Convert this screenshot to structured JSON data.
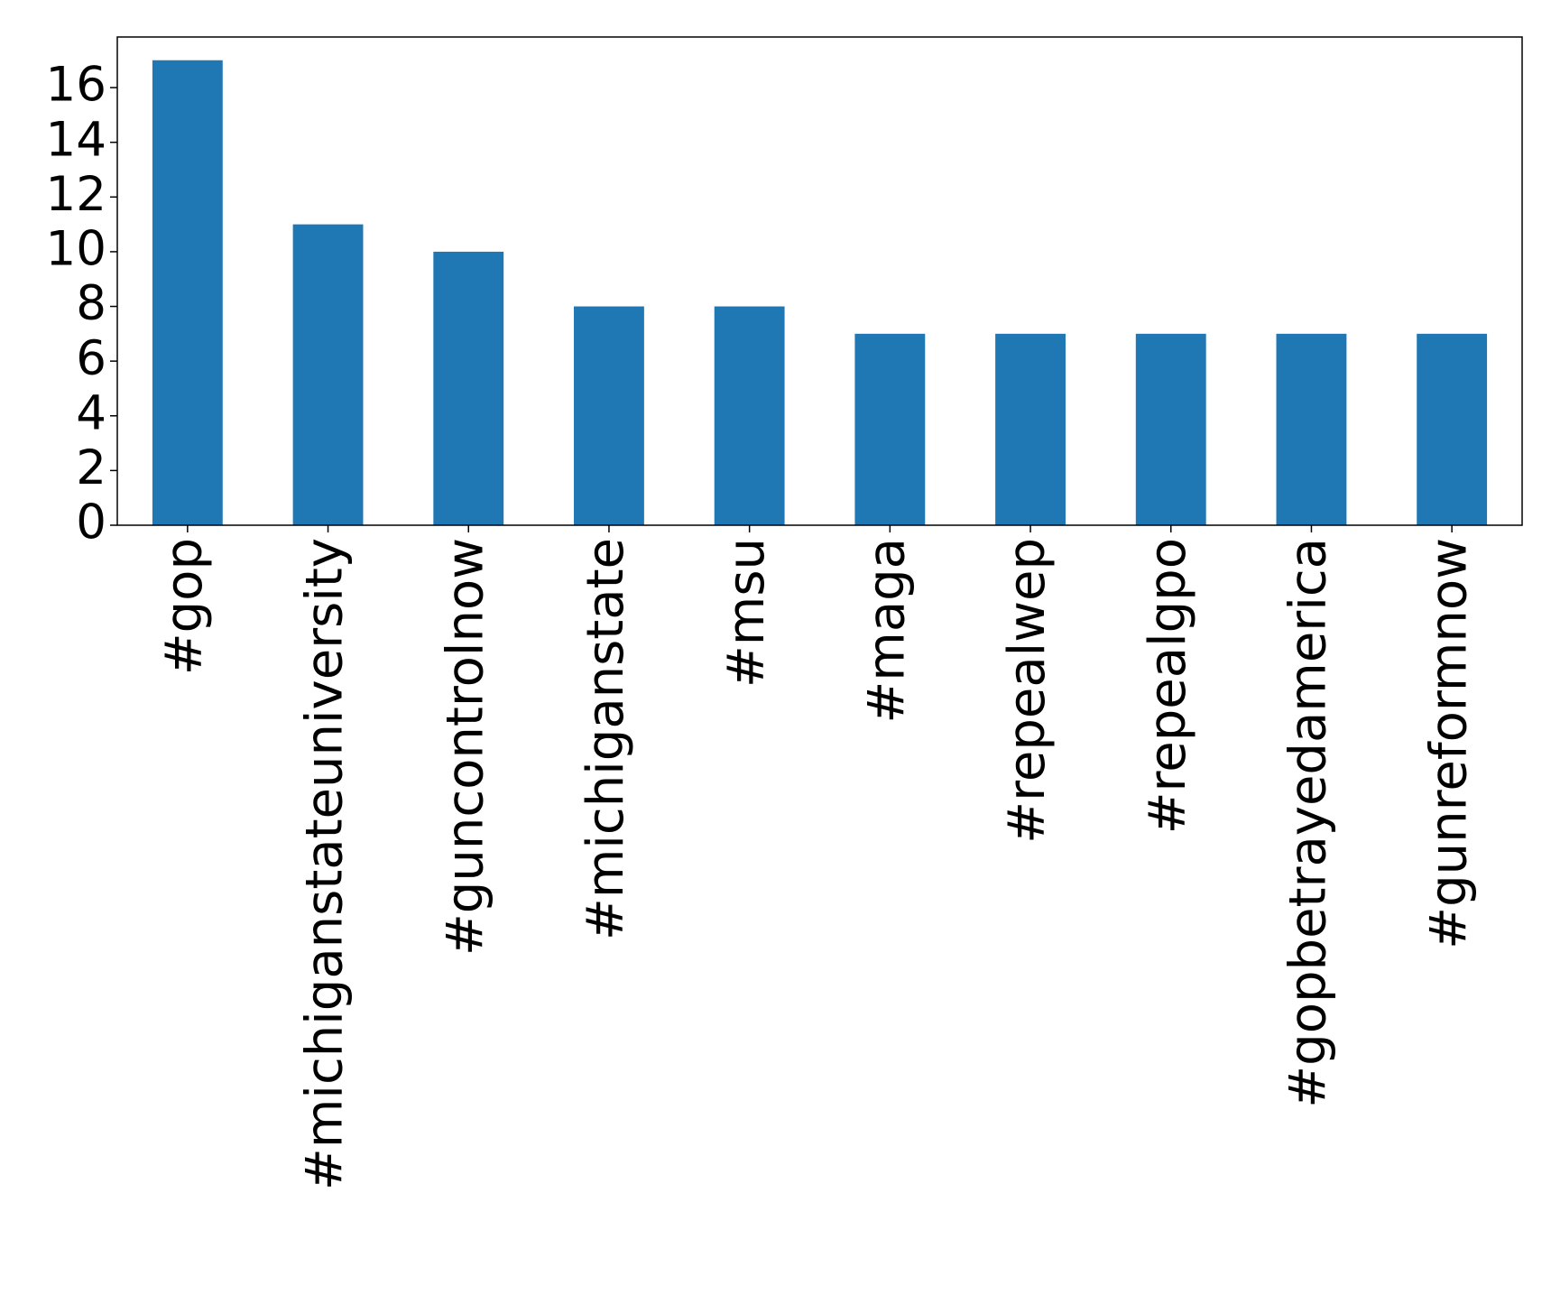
{
  "chart_data": {
    "type": "bar",
    "categories": [
      "#gop",
      "#michiganstateuniversity",
      "#guncontrolnow",
      "#michiganstate",
      "#msu",
      "#maga",
      "#repealwep",
      "#repealgpo",
      "#gopbetrayedamerica",
      "#gunreformnow"
    ],
    "values": [
      17,
      11,
      10,
      8,
      8,
      7,
      7,
      7,
      7,
      7
    ],
    "color": "#1f77b4",
    "ylim": [
      0,
      17.85
    ],
    "yticks": [
      0,
      2,
      4,
      6,
      8,
      10,
      12,
      14,
      16
    ],
    "grid": false
  }
}
